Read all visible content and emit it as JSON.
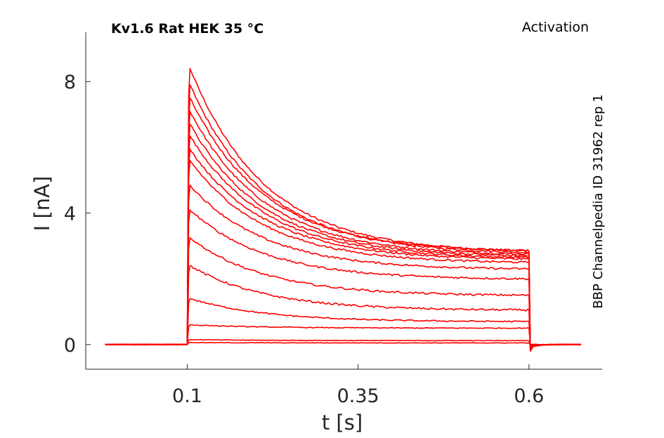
{
  "chart_data": {
    "type": "line",
    "title": "Kv1.6  Rat  HEK  35 °C",
    "subtitle": "Activation",
    "side_label": "BBP Channelpedia ID 31962 rep 1",
    "xlabel": "t [s]",
    "ylabel": "I [nA]",
    "xlim": [
      -0.0486,
      0.7071
    ],
    "ylim": [
      -0.75,
      9.5
    ],
    "xticks": [
      0.1,
      0.35,
      0.6
    ],
    "xtick_labels": [
      "0.1",
      "0.35",
      "0.6"
    ],
    "yticks": [
      0,
      4,
      8
    ],
    "ytick_labels": [
      "0",
      "4",
      "8"
    ],
    "grid": false,
    "color": "#ff0000",
    "step_on": 0.1,
    "step_off": 0.6,
    "t_start": -0.02,
    "t_end": 0.68,
    "series": [
      {
        "peak": 8.4,
        "end": 2.85
      },
      {
        "peak": 7.9,
        "end": 2.8
      },
      {
        "peak": 7.5,
        "end": 2.85
      },
      {
        "peak": 7.1,
        "end": 2.75
      },
      {
        "peak": 6.7,
        "end": 2.7
      },
      {
        "peak": 6.35,
        "end": 2.65
      },
      {
        "peak": 5.95,
        "end": 2.6
      },
      {
        "peak": 5.6,
        "end": 2.5
      },
      {
        "peak": 4.85,
        "end": 2.3
      },
      {
        "peak": 4.1,
        "end": 2.0
      },
      {
        "peak": 3.25,
        "end": 1.5
      },
      {
        "peak": 2.4,
        "end": 1.05
      },
      {
        "peak": 1.4,
        "end": 0.7
      },
      {
        "peak": 0.6,
        "end": 0.5
      },
      {
        "peak": 0.15,
        "end": 0.12
      },
      {
        "peak": 0.06,
        "end": 0.05
      }
    ]
  }
}
